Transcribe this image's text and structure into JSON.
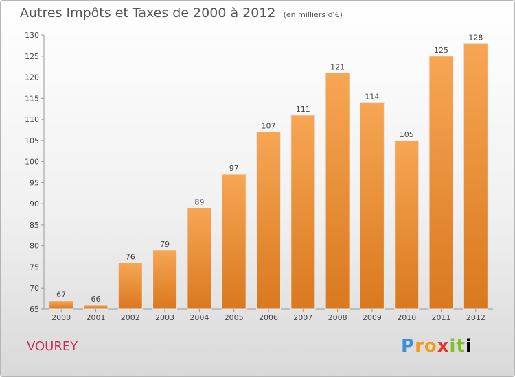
{
  "title": "Autres Impôts et Taxes de 2000 à 2012",
  "subtitle": "(en milliers d'€)",
  "commune": "VOUREY",
  "logo_text": "Proxiti",
  "colors": {
    "bar": "#f5a24e",
    "bar_dark": "#d97a22",
    "commune": "#c8305a",
    "text": "#555555"
  },
  "chart_data": {
    "type": "bar",
    "title": "Autres Impôts et Taxes de 2000 à 2012",
    "subtitle": "(en milliers d'€)",
    "categories": [
      "2000",
      "2001",
      "2002",
      "2003",
      "2004",
      "2005",
      "2006",
      "2007",
      "2008",
      "2009",
      "2010",
      "2011",
      "2012"
    ],
    "values": [
      67,
      66,
      76,
      79,
      89,
      97,
      107,
      111,
      121,
      114,
      105,
      125,
      128
    ],
    "ylim": [
      65,
      130
    ],
    "yticks": [
      65,
      70,
      75,
      80,
      85,
      90,
      95,
      100,
      105,
      110,
      115,
      120,
      125,
      130
    ],
    "grid": false,
    "xlabel": "",
    "ylabel": ""
  }
}
